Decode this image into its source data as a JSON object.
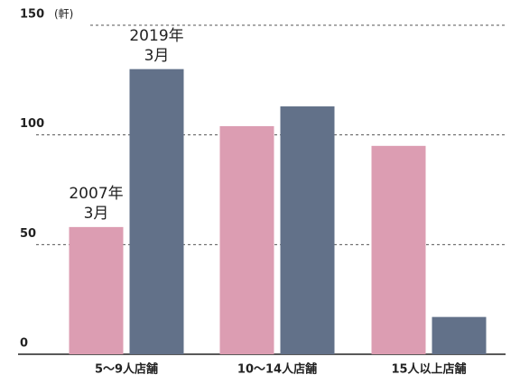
{
  "chart_data": {
    "type": "bar",
    "y_unit": "(軒)",
    "categories": [
      "5〜9人店舗",
      "10〜14人店舗",
      "15人以上店舗"
    ],
    "series": [
      {
        "name": "2007年\n3月",
        "color": "#dc9db2",
        "values": [
          58,
          104,
          95
        ]
      },
      {
        "name": "2019年\n3月",
        "color": "#627189",
        "values": [
          130,
          113,
          17
        ]
      }
    ],
    "ylim": [
      0,
      150
    ],
    "yticks": [
      0,
      50,
      100,
      150
    ],
    "grid": true
  }
}
